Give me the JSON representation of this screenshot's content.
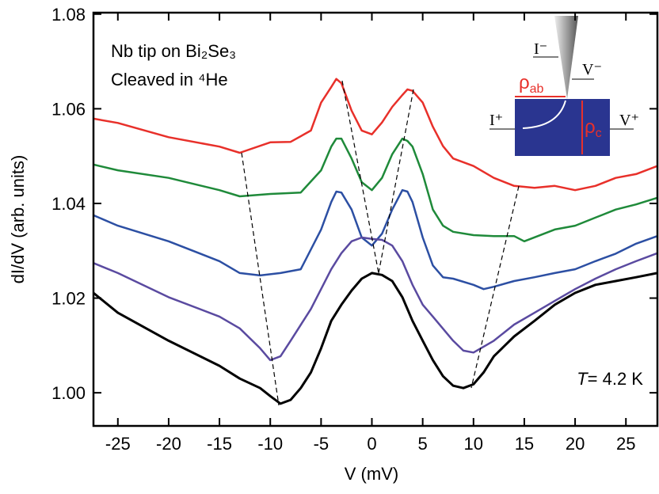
{
  "chart_data": {
    "type": "line",
    "x_label": "V (mV)",
    "y_label": "dI/dV (arb. units)",
    "xlim": [
      -27.4,
      28.1
    ],
    "ylim": [
      0.993,
      1.0803
    ],
    "xticks": [
      -25,
      -20,
      -15,
      -10,
      -5,
      0,
      5,
      10,
      15,
      20,
      25
    ],
    "yticks": [
      {
        "value": 1.0,
        "label": "1.00"
      },
      1.02,
      1.04,
      1.06,
      1.08
    ],
    "annotations": {
      "line1": "Nb tip on Bi₂Se₃",
      "line2": "Cleaved in ⁴He",
      "temperature": {
        "symbol": "T",
        "text": "= 4.2 K"
      }
    },
    "inset": {
      "i_minus": "I⁻",
      "v_minus": "V⁻",
      "i_plus": "I⁺",
      "v_plus": "V⁺",
      "rho_ab": {
        "symbol": "ρ",
        "sub": "ab"
      },
      "rho_c": {
        "symbol": "ρ",
        "sub": "c"
      }
    },
    "series": [
      {
        "color": "#e8302a",
        "x": [
          -27.4,
          -25,
          -20,
          -15,
          -13,
          -10,
          -8,
          -6,
          -5,
          -4,
          -3.5,
          -3,
          -2,
          -1,
          0,
          1,
          2,
          3,
          3.5,
          4,
          5,
          6,
          7,
          8,
          9,
          10,
          12,
          14,
          16,
          18,
          20,
          22,
          24,
          26,
          28.1
        ],
        "values": [
          1.0579,
          1.057,
          1.054,
          1.052,
          1.0507,
          1.0529,
          1.053,
          1.0554,
          1.0613,
          1.0646,
          1.0663,
          1.0654,
          1.0596,
          1.0554,
          1.0546,
          1.0571,
          1.0604,
          1.0629,
          1.0641,
          1.0638,
          1.0613,
          1.0562,
          1.0521,
          1.0495,
          1.0487,
          1.0479,
          1.0454,
          1.0437,
          1.0433,
          1.0437,
          1.0428,
          1.0437,
          1.0454,
          1.0462,
          1.0479
        ]
      },
      {
        "color": "#1f8a3a",
        "x": [
          -27.4,
          -25,
          -20,
          -15,
          -13,
          -10,
          -7,
          -5,
          -4,
          -3.5,
          -3,
          -2,
          -1,
          0,
          1,
          2,
          3,
          3.5,
          4,
          5,
          6,
          7,
          8,
          10,
          12,
          14,
          15,
          18,
          20,
          22,
          24,
          26,
          28.1
        ],
        "values": [
          1.0482,
          1.047,
          1.0454,
          1.0428,
          1.0415,
          1.042,
          1.0423,
          1.047,
          1.052,
          1.0537,
          1.0537,
          1.0495,
          1.0445,
          1.0428,
          1.0454,
          1.0504,
          1.0537,
          1.0532,
          1.052,
          1.0462,
          1.0387,
          1.0353,
          1.034,
          1.0333,
          1.0331,
          1.0331,
          1.032,
          1.0345,
          1.0353,
          1.037,
          1.0387,
          1.0398,
          1.0412
        ]
      },
      {
        "color": "#2c4fa3",
        "x": [
          -27.4,
          -25,
          -20,
          -15,
          -13,
          -11,
          -9,
          -7,
          -5,
          -4,
          -3.5,
          -3,
          -2,
          -1,
          0,
          1,
          2,
          3,
          3.5,
          4,
          5,
          6,
          7,
          8,
          10,
          11,
          12,
          14,
          16,
          18,
          20,
          22,
          24,
          26,
          28.1
        ],
        "values": [
          1.0375,
          1.0353,
          1.032,
          1.0278,
          1.0253,
          1.0248,
          1.0253,
          1.0261,
          1.0345,
          1.0403,
          1.0425,
          1.0423,
          1.0387,
          1.0328,
          1.0311,
          1.0336,
          1.0387,
          1.0428,
          1.0425,
          1.0403,
          1.0328,
          1.0269,
          1.0244,
          1.0241,
          1.0228,
          1.0219,
          1.0224,
          1.0236,
          1.0244,
          1.0253,
          1.0261,
          1.0278,
          1.0294,
          1.0315,
          1.0331
        ]
      },
      {
        "color": "#5a4aa0",
        "x": [
          -27.4,
          -25,
          -20,
          -15,
          -13,
          -11,
          -10,
          -9,
          -8,
          -6,
          -4,
          -3,
          -2,
          -1,
          0,
          1,
          2,
          3,
          4,
          5,
          6,
          8,
          9,
          10,
          12,
          14,
          16,
          18,
          20,
          22,
          24,
          26,
          28.1
        ],
        "values": [
          1.0274,
          1.0253,
          1.0202,
          1.0161,
          1.0136,
          1.0094,
          1.0069,
          1.0077,
          1.011,
          1.0177,
          1.0261,
          1.0295,
          1.032,
          1.0328,
          1.0325,
          1.0323,
          1.0311,
          1.0278,
          1.0228,
          1.0186,
          1.0161,
          1.011,
          1.0089,
          1.0085,
          1.011,
          1.0144,
          1.0169,
          1.0194,
          1.0219,
          1.0241,
          1.0261,
          1.0278,
          1.0295
        ]
      },
      {
        "color": "#000000",
        "x": [
          -27.4,
          -25,
          -20,
          -15,
          -13,
          -11,
          -10,
          -9,
          -8,
          -7,
          -6,
          -5,
          -4,
          -3,
          -2,
          -1,
          0,
          1,
          2,
          3,
          4,
          5,
          6,
          7,
          8,
          9,
          10,
          11,
          12,
          14,
          16,
          18,
          20,
          22,
          24,
          26,
          28.1
        ],
        "values": [
          1.0211,
          1.0169,
          1.011,
          1.0057,
          1.003,
          1.001,
          0.9993,
          0.9977,
          0.9985,
          1.001,
          1.0043,
          1.0094,
          1.0152,
          1.0186,
          1.0216,
          1.0241,
          1.0253,
          1.0249,
          1.0236,
          1.0202,
          1.0152,
          1.011,
          1.0069,
          1.0035,
          1.0015,
          1.001,
          1.0018,
          1.0043,
          1.0077,
          1.0119,
          1.0152,
          1.0186,
          1.0211,
          1.0228,
          1.0236,
          1.0244,
          1.0253
        ]
      }
    ]
  }
}
